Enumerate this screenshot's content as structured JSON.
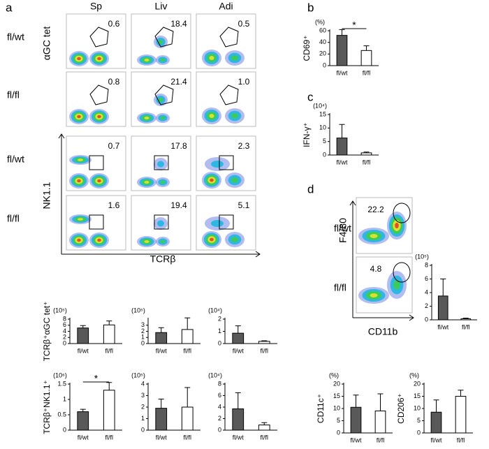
{
  "panel_labels": [
    "a",
    "b",
    "c",
    "d"
  ],
  "flow_a": {
    "columns": [
      "Sp",
      "Liv",
      "Adi"
    ],
    "rows": [
      "fl/wt",
      "fl/fl",
      "fl/wt",
      "fl/fl"
    ],
    "y_labels": [
      "αGC tet",
      "NK1.1"
    ],
    "x_label": "TCRβ",
    "gates": [
      [
        "0.6",
        "18.4",
        "0.5"
      ],
      [
        "0.8",
        "21.4",
        "1.0"
      ],
      [
        "0.7",
        "17.8",
        "2.3"
      ],
      [
        "1.6",
        "19.4",
        "5.1"
      ]
    ]
  },
  "flow_d": {
    "rows": [
      "fl/wt",
      "fl/fl"
    ],
    "y_label": "F4/80",
    "x_label": "CD11b",
    "gates": [
      "22.2",
      "4.8"
    ]
  },
  "chart_data": [
    {
      "type": "bar",
      "ylabel": "CD69⁺",
      "unit": "(%)",
      "categories": [
        "fl/wt",
        "fl/fl"
      ],
      "values": [
        52,
        26
      ],
      "errors": [
        10,
        8
      ],
      "colors": [
        "#595959",
        "#ffffff"
      ],
      "ylim": [
        0,
        60
      ],
      "yticks": [
        0,
        20,
        40,
        60
      ],
      "significance": "*"
    },
    {
      "type": "bar",
      "ylabel": "IFN-γ⁺",
      "unit": "(10⁴)",
      "categories": [
        "fl/wt",
        "fl/fl"
      ],
      "values": [
        6.3,
        0.8
      ],
      "errors": [
        5,
        0.3
      ],
      "colors": [
        "#595959",
        "#ffffff"
      ],
      "ylim": [
        0,
        15
      ],
      "yticks": [
        0,
        5,
        10,
        15
      ]
    },
    {
      "type": "bar",
      "unit": "(10⁵)",
      "categories": [
        "fl/wt",
        "fl/fl"
      ],
      "values": [
        3.5,
        0.15
      ],
      "errors": [
        2.5,
        0.1
      ],
      "colors": [
        "#595959",
        "#ffffff"
      ],
      "ylim": [
        0,
        8
      ],
      "yticks": [
        0,
        2,
        4,
        6,
        8
      ]
    },
    {
      "type": "bar",
      "ylabel": "CD11c⁺",
      "unit": "(%)",
      "categories": [
        "fl/wt",
        "fl/fl"
      ],
      "values": [
        10.5,
        9
      ],
      "errors": [
        5,
        7
      ],
      "colors": [
        "#595959",
        "#ffffff"
      ],
      "ylim": [
        0,
        20
      ],
      "yticks": [
        0,
        5,
        10,
        15,
        20
      ]
    },
    {
      "type": "bar",
      "ylabel": "CD206⁺",
      "unit": "(%)",
      "categories": [
        "fl/wt",
        "fl/fl"
      ],
      "values": [
        8.5,
        15
      ],
      "errors": [
        5,
        2.5
      ],
      "colors": [
        "#595959",
        "#ffffff"
      ],
      "ylim": [
        0,
        20
      ],
      "yticks": [
        0,
        5,
        10,
        15,
        20
      ]
    },
    {
      "type": "bar",
      "ylabel": "TCRβ⁺αGC tet⁺",
      "unit": "(10⁵)",
      "categories": [
        "fl/wt",
        "fl/fl"
      ],
      "values": [
        5.1,
        6.1
      ],
      "errors": [
        0.8,
        1.3
      ],
      "colors": [
        "#595959",
        "#ffffff"
      ],
      "ylim": [
        0,
        8
      ],
      "yticks": [
        0,
        2,
        4,
        6,
        8
      ]
    },
    {
      "type": "bar",
      "unit": "(10⁵)",
      "categories": [
        "fl/wt",
        "fl/fl"
      ],
      "values": [
        1.8,
        2.3
      ],
      "errors": [
        0.8,
        1.9
      ],
      "colors": [
        "#595959",
        "#ffffff"
      ],
      "ylim": [
        0,
        4
      ],
      "yticks": [
        0,
        1,
        2,
        3
      ]
    },
    {
      "type": "bar",
      "unit": "(10⁴)",
      "categories": [
        "fl/wt",
        "fl/fl"
      ],
      "values": [
        0.85,
        0.18
      ],
      "errors": [
        0.6,
        0.05
      ],
      "colors": [
        "#595959",
        "#ffffff"
      ],
      "ylim": [
        0,
        2
      ],
      "yticks": [
        0,
        1,
        2
      ]
    },
    {
      "type": "bar",
      "ylabel": "TCRβ⁺NK1.1⁺",
      "unit": "(10⁶)",
      "categories": [
        "fl/wt",
        "fl/fl"
      ],
      "values": [
        0.6,
        1.3
      ],
      "errors": [
        0.08,
        0.25
      ],
      "colors": [
        "#595959",
        "#ffffff"
      ],
      "ylim": [
        0,
        1.5
      ],
      "yticks": [
        0,
        0.5,
        1,
        1.5
      ],
      "significance": "*"
    },
    {
      "type": "bar",
      "unit": "(10⁵)",
      "categories": [
        "fl/wt",
        "fl/fl"
      ],
      "values": [
        1.9,
        2.0
      ],
      "errors": [
        0.8,
        1.7
      ],
      "colors": [
        "#595959",
        "#ffffff"
      ],
      "ylim": [
        0,
        4
      ],
      "yticks": [
        0,
        1,
        2,
        3,
        4
      ]
    },
    {
      "type": "bar",
      "unit": "(10⁴)",
      "categories": [
        "fl/wt",
        "fl/fl"
      ],
      "values": [
        3.7,
        0.9
      ],
      "errors": [
        2.8,
        0.4
      ],
      "colors": [
        "#595959",
        "#ffffff"
      ],
      "ylim": [
        0,
        8
      ],
      "yticks": [
        0,
        2,
        4,
        6,
        8
      ]
    }
  ]
}
